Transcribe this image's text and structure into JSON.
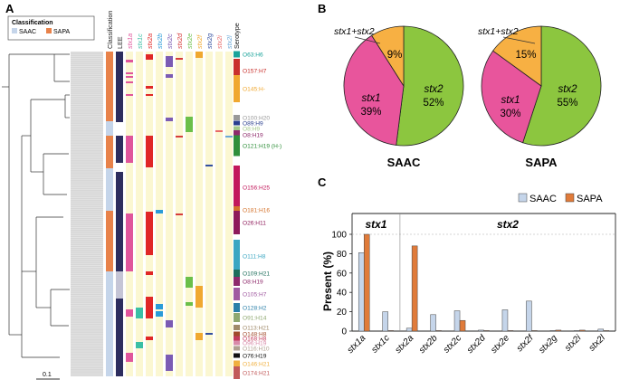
{
  "panels": {
    "a": "A",
    "b": "B",
    "c": "C"
  },
  "panel_a": {
    "legend_title": "Classification",
    "legend_items": [
      {
        "label": "SAAC",
        "color": "#c5d5ea"
      },
      {
        "label": "SAPA",
        "color": "#e8824a"
      }
    ],
    "column_headers": [
      {
        "label": "Classification",
        "color": "#222222"
      },
      {
        "label": "LEE",
        "color": "#222222"
      },
      {
        "label": "stx1a",
        "color": "#e0559c"
      },
      {
        "label": "stx1c",
        "color": "#3abfa5"
      },
      {
        "label": "stx2a",
        "color": "#e02727"
      },
      {
        "label": "stx2b",
        "color": "#2a9bd8"
      },
      {
        "label": "stx2c",
        "color": "#7b5bb4"
      },
      {
        "label": "stx2d",
        "color": "#d63c3c"
      },
      {
        "label": "stx2e",
        "color": "#6bbf4a"
      },
      {
        "label": "stx2f",
        "color": "#f0a830"
      },
      {
        "label": "stx2g",
        "color": "#334fa0"
      },
      {
        "label": "stx2i",
        "color": "#e86a6a"
      },
      {
        "label": "stx2l",
        "color": "#6aa8d8"
      },
      {
        "label": "Serotype",
        "color": "#222222"
      }
    ],
    "serotypes": [
      {
        "label": "O63:H6",
        "color": "#1aa39a"
      },
      {
        "label": "O157:H7",
        "color": "#c9302c"
      },
      {
        "label": "O145:H-",
        "color": "#f0a830"
      },
      {
        "label": "O100:H20",
        "color": "#999999"
      },
      {
        "label": "O89:H9",
        "color": "#2a3f8f"
      },
      {
        "label": "O8:H9",
        "color": "#a3c98a"
      },
      {
        "label": "O8:H19",
        "color": "#8e2a6b"
      },
      {
        "label": "O121:H19 (H-)",
        "color": "#2f8f3a"
      },
      {
        "label": "O156:H25",
        "color": "#c2185b"
      },
      {
        "label": "O181:H16",
        "color": "#d4722b"
      },
      {
        "label": "O26:H11",
        "color": "#8e1a5a"
      },
      {
        "label": "O111:H8",
        "color": "#3aa6c2"
      },
      {
        "label": "O109:H21",
        "color": "#1d6e5a"
      },
      {
        "label": "O8:H19",
        "color": "#8e2a6b"
      },
      {
        "label": "O105:H7",
        "color": "#a05aa0"
      },
      {
        "label": "O128:H2",
        "color": "#2a7fa8"
      },
      {
        "label": "O91:H14",
        "color": "#8fa870"
      },
      {
        "label": "O113:H21",
        "color": "#a08a6a"
      },
      {
        "label": "O148:H8",
        "color": "#a04a2a"
      },
      {
        "label": "O168:H8",
        "color": "#c23a5a"
      },
      {
        "label": "O96:H19",
        "color": "#d88aa8"
      },
      {
        "label": "O116:H10",
        "color": "#b0a090"
      },
      {
        "label": "O76:H19",
        "color": "#111111"
      },
      {
        "label": "O146:H21",
        "color": "#f0b040"
      },
      {
        "label": "O174:H21",
        "color": "#c25a5a"
      }
    ],
    "scale_label": "0.1"
  },
  "panel_b": {
    "saac": {
      "label": "SAAC",
      "callout": "stx1+stx2",
      "slice_labels": [
        "stx2",
        "stx1",
        ""
      ]
    },
    "sapa": {
      "label": "SAPA",
      "callout": "stx1+stx2",
      "slice_labels": [
        "stx2",
        "stx1",
        ""
      ]
    }
  },
  "chart_data": [
    {
      "type": "pie",
      "title": "SAAC",
      "labels": [
        "stx2",
        "stx1",
        "stx1+stx2"
      ],
      "values": [
        52,
        39,
        9
      ],
      "value_labels": [
        "52%",
        "39%",
        "9%"
      ],
      "colors": [
        "#8cc63f",
        "#e8559c",
        "#f7b043"
      ]
    },
    {
      "type": "pie",
      "title": "SAPA",
      "labels": [
        "stx2",
        "stx1",
        "stx1+stx2"
      ],
      "values": [
        55,
        30,
        15
      ],
      "value_labels": [
        "55%",
        "30%",
        "15%"
      ],
      "colors": [
        "#8cc63f",
        "#e8559c",
        "#f7b043"
      ]
    },
    {
      "type": "bar",
      "categories": [
        "stx1a",
        "stx1c",
        "stx2a",
        "stx2b",
        "stx2c",
        "stx2d",
        "stx2e",
        "stx2f",
        "stx2g",
        "stx2i",
        "stx2l"
      ],
      "group_labels": [
        "stx1",
        "stx2"
      ],
      "series": [
        {
          "name": "SAAC",
          "color": "#c5d5ea",
          "values": [
            81,
            20,
            3,
            17,
            21,
            1,
            22,
            31,
            0,
            0,
            2
          ]
        },
        {
          "name": "SAPA",
          "color": "#e07b3a",
          "values": [
            100,
            0,
            88,
            0,
            11,
            0,
            0,
            0,
            1,
            1,
            0
          ]
        }
      ],
      "ylabel": "Present (%)",
      "ylim": [
        0,
        100
      ],
      "yticks": [
        "0",
        "20",
        "40",
        "60",
        "80",
        "100"
      ],
      "legend": "top-right"
    }
  ]
}
